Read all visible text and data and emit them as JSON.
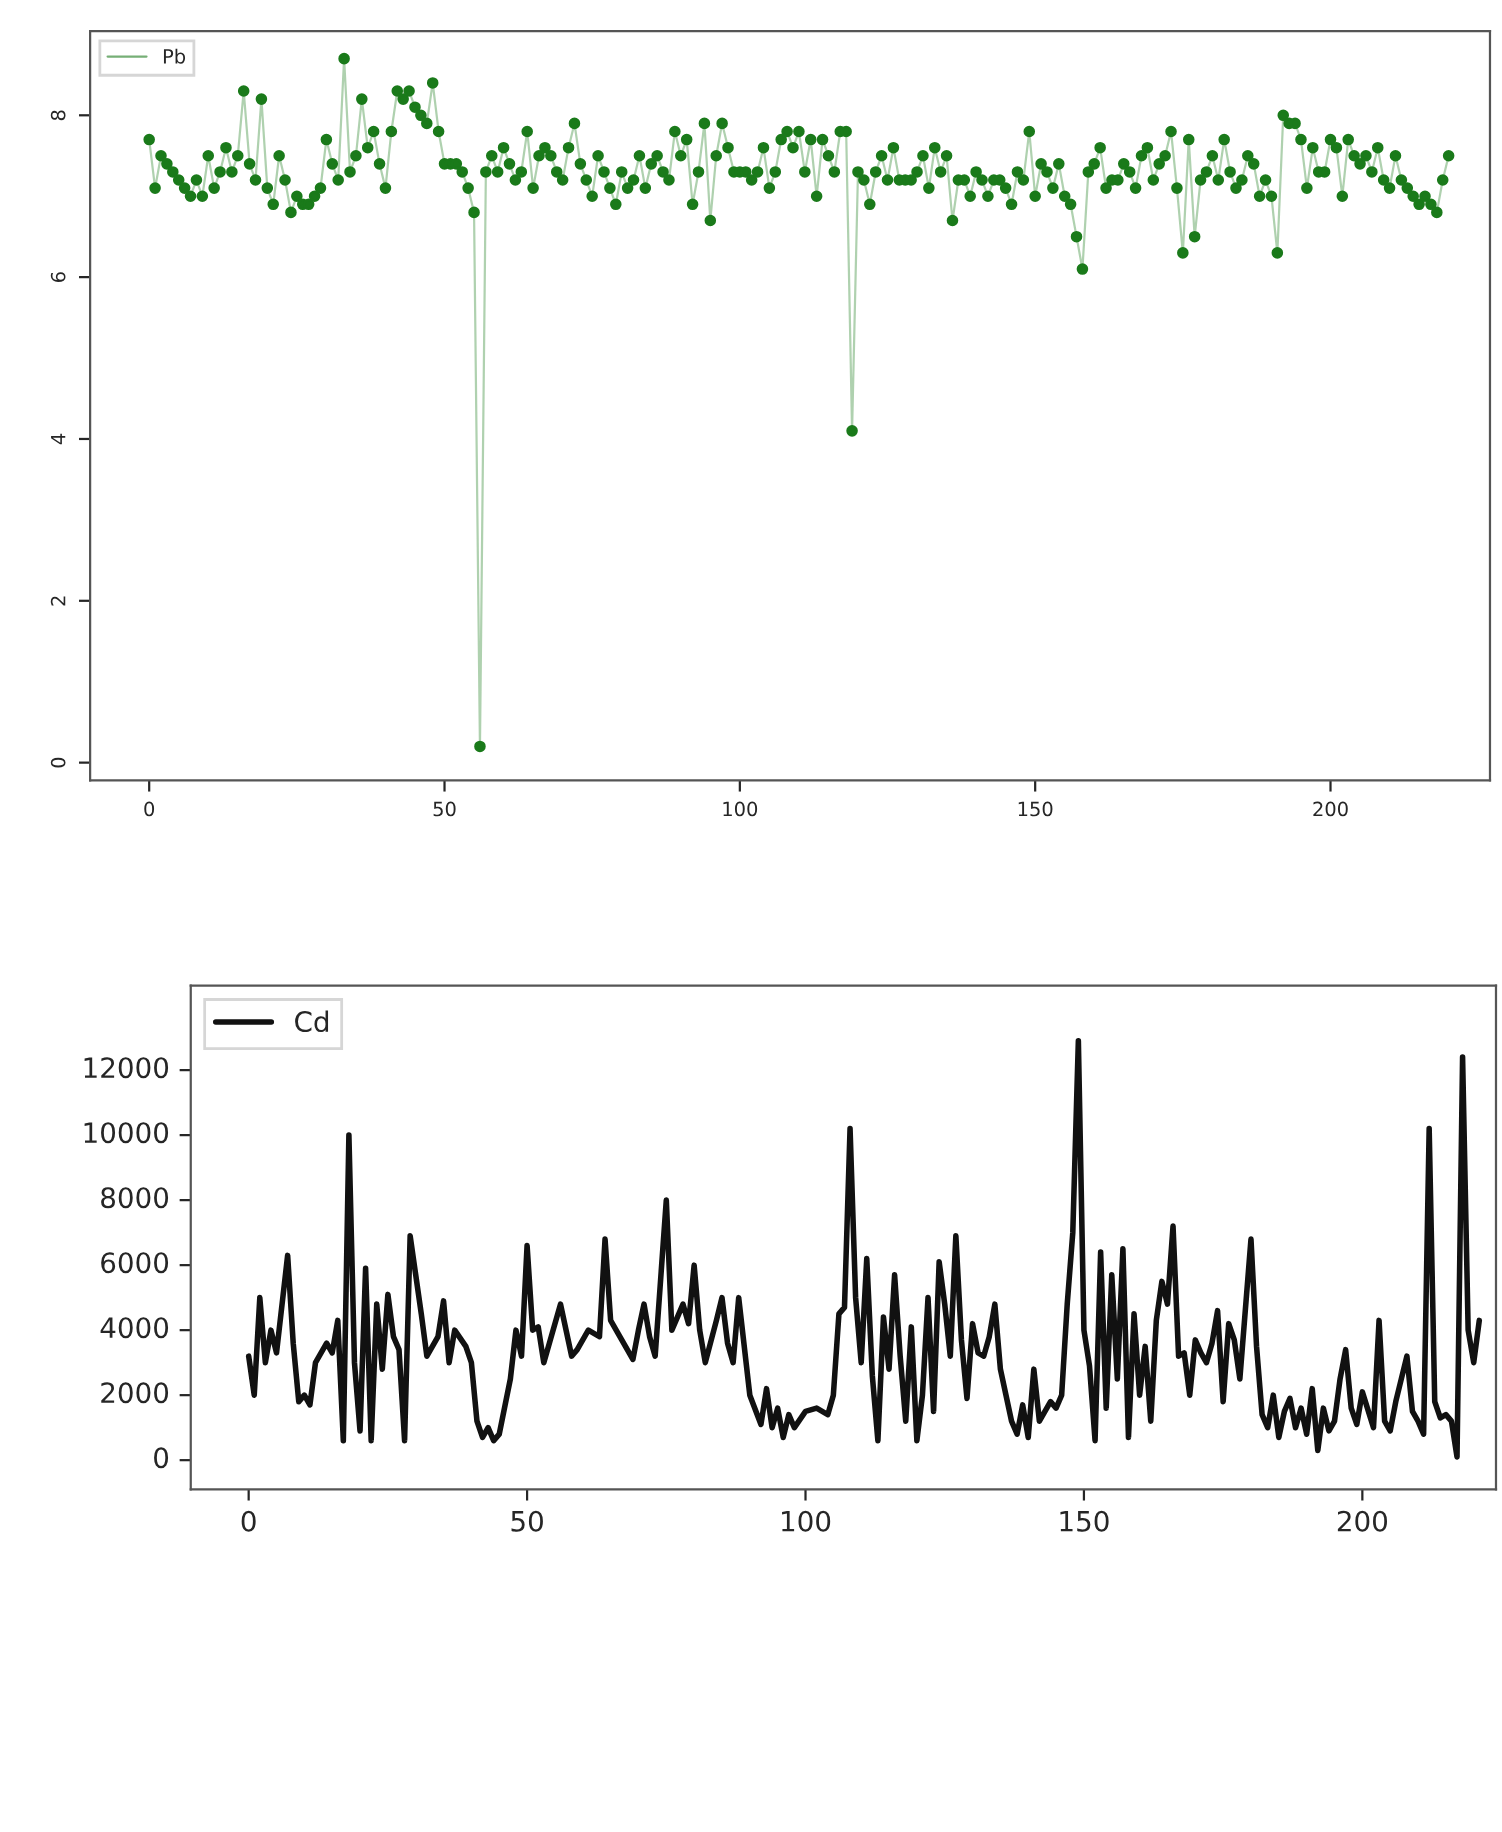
{
  "chart_data": [
    {
      "type": "line",
      "marker": "circle",
      "legend": "top left",
      "xlim": [
        -10,
        227
      ],
      "ylim": [
        -0.22,
        9.04
      ],
      "xticks": [
        0,
        50,
        100,
        150,
        200
      ],
      "yticks": [
        0,
        2,
        4,
        6,
        8
      ],
      "series": [
        {
          "name": "Pb",
          "color": "#1a7a1a",
          "x": [
            0,
            1,
            2,
            3,
            4,
            5,
            6,
            7,
            8,
            9,
            10,
            11,
            12,
            13,
            14,
            15,
            16,
            17,
            18,
            19,
            20,
            21,
            22,
            23,
            24,
            25,
            26,
            27,
            28,
            29,
            30,
            31,
            32,
            33,
            34,
            35,
            36,
            37,
            38,
            39,
            40,
            41,
            42,
            43,
            44,
            45,
            46,
            47,
            48,
            49,
            50,
            51,
            52,
            53,
            54,
            55,
            56,
            57,
            58,
            59,
            60,
            61,
            62,
            63,
            64,
            65,
            66,
            67,
            68,
            69,
            70,
            71,
            72,
            73,
            74,
            75,
            76,
            77,
            78,
            79,
            80,
            81,
            82,
            83,
            84,
            85,
            86,
            87,
            88,
            89,
            90,
            91,
            92,
            93,
            94,
            95,
            96,
            97,
            98,
            99,
            100,
            101,
            102,
            103,
            104,
            105,
            106,
            107,
            108,
            109,
            110,
            111,
            112,
            113,
            114,
            115,
            116,
            117,
            118,
            119,
            120,
            121,
            122,
            123,
            124,
            125,
            126,
            127,
            128,
            129,
            130,
            131,
            132,
            133,
            134,
            135,
            136,
            137,
            138,
            139,
            140,
            141,
            142,
            143,
            144,
            145,
            146,
            147,
            148,
            149,
            150,
            151,
            152,
            153,
            154,
            155,
            156,
            157,
            158,
            159,
            160,
            161,
            162,
            163,
            164,
            165,
            166,
            167,
            168,
            169,
            170,
            171,
            172,
            173,
            174,
            175,
            176,
            177,
            178,
            179,
            180,
            181,
            182,
            183,
            184,
            185,
            186,
            187,
            188,
            189,
            190,
            191,
            192,
            193,
            194,
            195,
            196,
            197,
            198,
            199,
            200,
            201,
            202,
            203,
            204,
            205,
            206,
            207,
            208,
            209,
            210,
            211,
            212,
            213,
            214,
            215,
            216,
            217,
            218,
            219,
            220
          ],
          "values": [
            7.7,
            7.1,
            7.5,
            7.4,
            7.3,
            7.2,
            7.1,
            7.0,
            7.2,
            7.0,
            7.5,
            7.1,
            7.3,
            7.6,
            7.3,
            7.5,
            8.3,
            7.4,
            7.2,
            8.2,
            7.1,
            6.9,
            7.5,
            7.2,
            6.8,
            7.0,
            6.9,
            6.9,
            7.0,
            7.1,
            7.7,
            7.4,
            7.2,
            8.7,
            7.3,
            7.5,
            8.2,
            7.6,
            7.8,
            7.4,
            7.1,
            7.8,
            8.3,
            8.2,
            8.3,
            8.1,
            8.0,
            7.9,
            8.4,
            7.8,
            7.4,
            7.4,
            7.4,
            7.3,
            7.1,
            6.8,
            0.2,
            7.3,
            7.5,
            7.3,
            7.6,
            7.4,
            7.2,
            7.3,
            7.8,
            7.1,
            7.5,
            7.6,
            7.5,
            7.3,
            7.2,
            7.6,
            7.9,
            7.4,
            7.2,
            7.0,
            7.5,
            7.3,
            7.1,
            6.9,
            7.3,
            7.1,
            7.2,
            7.5,
            7.1,
            7.4,
            7.5,
            7.3,
            7.2,
            7.8,
            7.5,
            7.7,
            6.9,
            7.3,
            7.9,
            6.7,
            7.5,
            7.9,
            7.6,
            7.3,
            7.3,
            7.3,
            7.2,
            7.3,
            7.6,
            7.1,
            7.3,
            7.7,
            7.8,
            7.6,
            7.8,
            7.3,
            7.7,
            7.0,
            7.7,
            7.5,
            7.3,
            7.8,
            7.8,
            4.1,
            7.3,
            7.2,
            6.9,
            7.3,
            7.5,
            7.2,
            7.6,
            7.2,
            7.2,
            7.2,
            7.3,
            7.5,
            7.1,
            7.6,
            7.3,
            7.5,
            6.7,
            7.2,
            7.2,
            7.0,
            7.3,
            7.2,
            7.0,
            7.2,
            7.2,
            7.1,
            6.9,
            7.3,
            7.2,
            7.8,
            7.0,
            7.4,
            7.3,
            7.1,
            7.4,
            7.0,
            6.9,
            6.5,
            6.1,
            7.3,
            7.4,
            7.6,
            7.1,
            7.2,
            7.2,
            7.4,
            7.3,
            7.1,
            7.5,
            7.6,
            7.2,
            7.4,
            7.5,
            7.8,
            7.1,
            6.3,
            7.7,
            6.5,
            7.2,
            7.3,
            7.5,
            7.2,
            7.7,
            7.3,
            7.1,
            7.2,
            7.5,
            7.4,
            7.0,
            7.2,
            7.0,
            6.3,
            8.0,
            7.9,
            7.9,
            7.7,
            7.1,
            7.6,
            7.3,
            7.3,
            7.7,
            7.6,
            7.0,
            7.7,
            7.5,
            7.4,
            7.5,
            7.3,
            7.6,
            7.2,
            7.1,
            7.5,
            7.2,
            7.1,
            7.0,
            6.9,
            7.0,
            6.9,
            6.8,
            7.2,
            7.5
          ]
        }
      ]
    },
    {
      "type": "line",
      "legend": "top left",
      "xlim": [
        -10.4,
        224
      ],
      "ylim": [
        -900,
        14600
      ],
      "xticks": [
        0,
        50,
        100,
        150,
        200
      ],
      "yticks": [
        0,
        2000,
        4000,
        6000,
        8000,
        10000,
        12000
      ],
      "series": [
        {
          "name": "Cd",
          "color": "#111111",
          "x": [
            0,
            1,
            2,
            3,
            4,
            5,
            7,
            8,
            9,
            10,
            11,
            12,
            14,
            15,
            16,
            17,
            18,
            19,
            20,
            21,
            22,
            23,
            24,
            25,
            26,
            27,
            28,
            29,
            31,
            32,
            34,
            35,
            36,
            37,
            39,
            40,
            41,
            42,
            43,
            44,
            45,
            47,
            48,
            49,
            50,
            51,
            52,
            53,
            54,
            56,
            57,
            58,
            59,
            61,
            63,
            64,
            65,
            67,
            69,
            70,
            71,
            72,
            73,
            75,
            76,
            78,
            79,
            80,
            81,
            82,
            84,
            85,
            86,
            87,
            88,
            90,
            92,
            93,
            94,
            95,
            96,
            97,
            98,
            100,
            102,
            104,
            105,
            106,
            107,
            108,
            109,
            110,
            111,
            112,
            113,
            114,
            115,
            116,
            117,
            118,
            119,
            120,
            121,
            122,
            123,
            124,
            125,
            126,
            127,
            128,
            129,
            130,
            131,
            132,
            133,
            134,
            135,
            136,
            137,
            138,
            139,
            140,
            141,
            142,
            143,
            144,
            145,
            146,
            147,
            148,
            149,
            150,
            151,
            152,
            153,
            154,
            155,
            156,
            157,
            158,
            159,
            160,
            161,
            162,
            163,
            164,
            165,
            166,
            167,
            168,
            169,
            170,
            171,
            172,
            173,
            174,
            175,
            176,
            177,
            178,
            180,
            181,
            182,
            183,
            184,
            185,
            186,
            187,
            188,
            189,
            190,
            191,
            192,
            193,
            194,
            195,
            196,
            197,
            198,
            199,
            200,
            202,
            203,
            204,
            205,
            206,
            207,
            208,
            209,
            210,
            211,
            212,
            213,
            214,
            215,
            216,
            217,
            218,
            219,
            220,
            221
          ],
          "values": [
            3200,
            2000,
            5000,
            3000,
            4000,
            3300,
            6300,
            3600,
            1800,
            2000,
            1700,
            3000,
            3600,
            3300,
            4300,
            600,
            10000,
            3000,
            900,
            5900,
            600,
            4800,
            2800,
            5100,
            3800,
            3400,
            600,
            6900,
            4500,
            3200,
            3800,
            4900,
            3000,
            4000,
            3500,
            3000,
            1200,
            700,
            1000,
            600,
            800,
            2500,
            4000,
            3200,
            6600,
            4000,
            4100,
            3000,
            3600,
            4800,
            4000,
            3200,
            3400,
            4000,
            3800,
            6800,
            4300,
            3700,
            3100,
            4000,
            4800,
            3800,
            3200,
            8000,
            4000,
            4800,
            4200,
            6000,
            4000,
            3000,
            4300,
            5000,
            3600,
            3000,
            5000,
            2000,
            1100,
            2200,
            1000,
            1600,
            700,
            1400,
            1000,
            1500,
            1600,
            1400,
            2000,
            4500,
            4700,
            10200,
            5000,
            3000,
            6200,
            2600,
            600,
            4400,
            2800,
            5700,
            3200,
            1200,
            4100,
            600,
            2000,
            5000,
            1500,
            6100,
            4800,
            3200,
            6900,
            3700,
            1900,
            4200,
            3300,
            3200,
            3800,
            4800,
            2800,
            2000,
            1200,
            800,
            1700,
            700,
            2800,
            1200,
            1500,
            1800,
            1600,
            2000,
            4800,
            7000,
            12900,
            4000,
            2900,
            600,
            6400,
            1600,
            5700,
            2500,
            6500,
            700,
            4500,
            2000,
            3500,
            1200,
            4300,
            5500,
            4800,
            7200,
            3200,
            3300,
            2000,
            3700,
            3300,
            3000,
            3600,
            4600,
            1800,
            4200,
            3700,
            2500,
            6800,
            3500,
            1400,
            1000,
            2000,
            700,
            1500,
            1900,
            1000,
            1600,
            800,
            2200,
            300,
            1600,
            900,
            1200,
            2500,
            3400,
            1600,
            1100,
            2100,
            1000,
            4300,
            1200,
            900,
            1800,
            2500,
            3200,
            1500,
            1200,
            800,
            10200,
            1800,
            1300,
            1400,
            1200,
            100,
            12400,
            4000,
            3000,
            4300
          ]
        }
      ]
    }
  ]
}
